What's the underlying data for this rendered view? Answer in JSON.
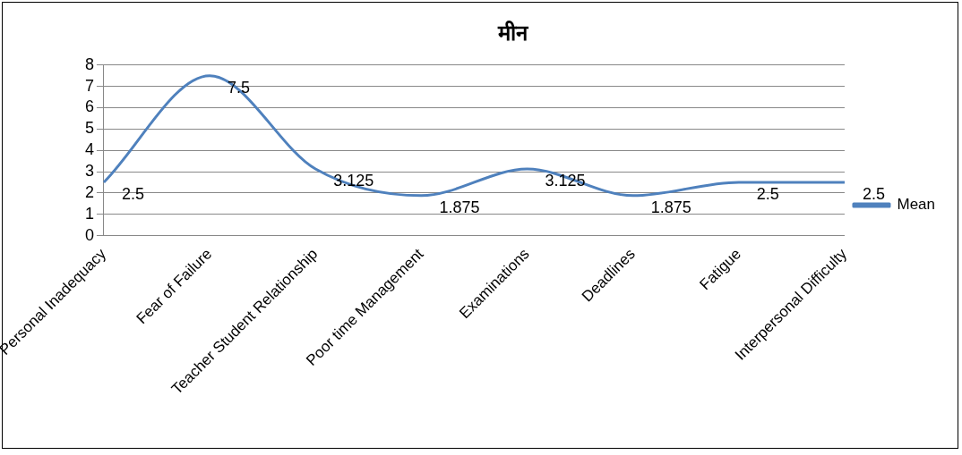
{
  "chart_data": {
    "type": "line",
    "title": "मीन",
    "categories": [
      "Personal Inadequacy",
      "Fear of Failure",
      "Teacher Student Relationship",
      "Poor time Management",
      "Examinations",
      "Deadlines",
      "Fatigue",
      "Interpersonal Difficulty"
    ],
    "series": [
      {
        "name": "Mean",
        "color": "#4f81bd",
        "values": [
          2.5,
          7.5,
          3.125,
          1.875,
          3.125,
          1.875,
          2.5,
          2.5
        ]
      }
    ],
    "ylim": [
      0,
      8
    ],
    "yticks": [
      0,
      1,
      2,
      3,
      4,
      5,
      6,
      7,
      8
    ],
    "grid": "y",
    "legend": "right",
    "marker": "none",
    "data_labels": true
  }
}
